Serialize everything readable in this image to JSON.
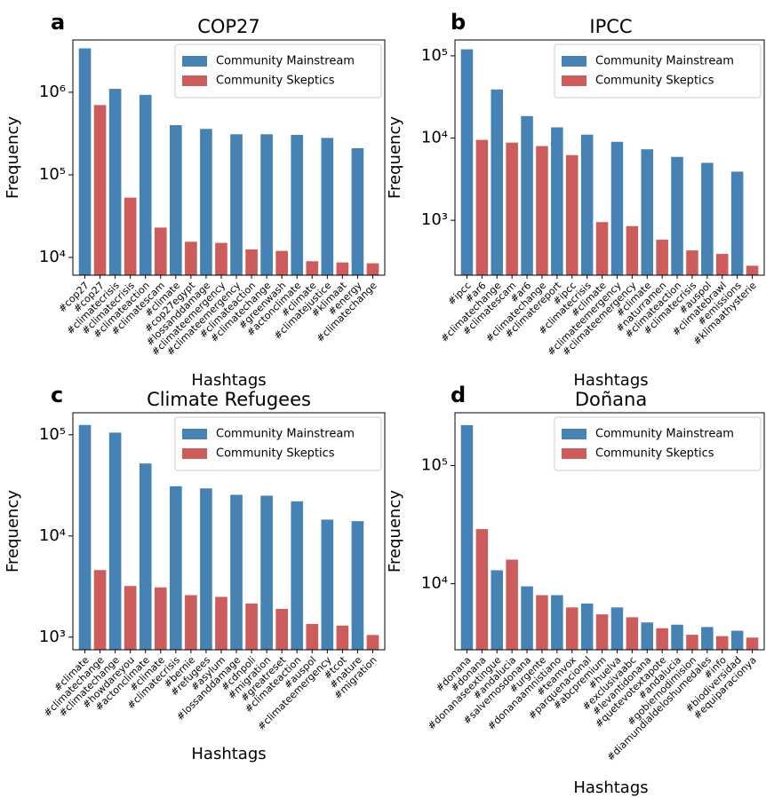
{
  "chart_data": [
    {
      "type": "bar",
      "panel_label": "a",
      "title": "COP27",
      "xlabel": "Hashtags",
      "ylabel": "Frequency",
      "log_scale": true,
      "legend": "upper right",
      "categories": [
        "#cop27",
        "#cop27",
        "#climatecrisis",
        "#climatecrisis",
        "#climateaction",
        "#climatescam",
        "#climate",
        "#cop27egypt",
        "#lossanddamage",
        "#climateemergency",
        "#climateemergency",
        "#climateaction",
        "#climatechange",
        "#greenwash",
        "#actonclimate",
        "#climate",
        "#climatejustice",
        "#klimaat",
        "#energy",
        "#climatechange"
      ],
      "series": [
        {
          "name": "Community Mainstream",
          "color": "#4682b4",
          "values": [
            3400000,
            null,
            1100000,
            null,
            930000,
            null,
            400000,
            null,
            360000,
            null,
            310000,
            null,
            310000,
            null,
            305000,
            null,
            280000,
            null,
            210000,
            null
          ]
        },
        {
          "name": "Community Skeptics",
          "color": "#cd5c5c",
          "values": [
            null,
            700000,
            null,
            53000,
            null,
            23000,
            null,
            15500,
            null,
            15000,
            null,
            12500,
            null,
            12000,
            null,
            9000,
            null,
            8700,
            null,
            8500
          ]
        }
      ],
      "ylim": [
        6100,
        4300000
      ],
      "yticks": [
        {
          "value": 10000,
          "label": "10⁴"
        },
        {
          "value": 100000,
          "label": "10⁵"
        },
        {
          "value": 1000000,
          "label": "10⁶"
        }
      ]
    },
    {
      "type": "bar",
      "panel_label": "b",
      "title": "IPCC",
      "xlabel": "Hashtags",
      "ylabel": "Frequency",
      "log_scale": true,
      "legend": "upper right",
      "categories": [
        "#ipcc",
        "#ar6",
        "#climatechange",
        "#climatescam",
        "#ar6",
        "#climatechange",
        "#climatereport",
        "#ipcc",
        "#climatecrisis",
        "#climate",
        "#climateemergency",
        "#climateemergency",
        "#climate",
        "#naturramen",
        "#climateaction",
        "#climatecrisis",
        "#auspol",
        "#climatebrawl",
        "#emissions",
        "#klimaathysterie"
      ],
      "series": [
        {
          "name": "Community Mainstream",
          "color": "#4682b4",
          "values": [
            120000,
            null,
            39000,
            null,
            18500,
            null,
            13500,
            null,
            11000,
            null,
            9000,
            null,
            7300,
            null,
            5900,
            null,
            5000,
            null,
            3900,
            null
          ]
        },
        {
          "name": "Community Skeptics",
          "color": "#cd5c5c",
          "values": [
            null,
            9500,
            null,
            8800,
            null,
            8000,
            null,
            6200,
            null,
            950,
            null,
            850,
            null,
            580,
            null,
            430,
            null,
            390,
            null,
            280
          ]
        }
      ],
      "ylim": [
        215,
        156000
      ],
      "yticks": [
        {
          "value": 1000,
          "label": "10³"
        },
        {
          "value": 10000,
          "label": "10⁴"
        },
        {
          "value": 100000,
          "label": "10⁵"
        }
      ]
    },
    {
      "type": "bar",
      "panel_label": "c",
      "title": "Climate Refugees",
      "xlabel": "Hashtags",
      "ylabel": "Frequency",
      "log_scale": true,
      "legend": "upper right",
      "categories": [
        "#climate",
        "#climatechange",
        "#climatechange",
        "#howdareyou",
        "#actonclimate",
        "#climate",
        "#climatecrisis",
        "#bernie",
        "#refugees",
        "#asylum",
        "#lossanddamage",
        "#cdnpoli",
        "#migration",
        "#greatreset",
        "#climateaction",
        "#auspol",
        "#climateemergency",
        "#tcot",
        "#nature",
        "#migration"
      ],
      "series": [
        {
          "name": "Community Mainstream",
          "color": "#4682b4",
          "values": [
            125000,
            null,
            105000,
            null,
            52000,
            null,
            31000,
            null,
            29500,
            null,
            25500,
            null,
            25000,
            null,
            22000,
            null,
            14500,
            null,
            14000,
            null
          ]
        },
        {
          "name": "Community Skeptics",
          "color": "#cd5c5c",
          "values": [
            null,
            4600,
            null,
            3200,
            null,
            3100,
            null,
            2600,
            null,
            2500,
            null,
            2150,
            null,
            1900,
            null,
            1350,
            null,
            1300,
            null,
            1050
          ]
        }
      ],
      "ylim": [
        750,
        165000
      ],
      "yticks": [
        {
          "value": 1000,
          "label": "10³"
        },
        {
          "value": 10000,
          "label": "10⁴"
        },
        {
          "value": 100000,
          "label": "10⁵"
        }
      ]
    },
    {
      "type": "bar",
      "panel_label": "d",
      "title": "Doñana",
      "xlabel": "Hashtags",
      "ylabel": "Frequency",
      "log_scale": true,
      "legend": "upper right",
      "categories": [
        "#donana",
        "#donana",
        "#donanaseextingue",
        "#andalucia",
        "#salvemosdonana",
        "#urgente",
        "#donanaamnistiano",
        "#teamvox",
        "#parquenacional",
        "#abcpremium",
        "#huelva",
        "#exclusivaabc",
        "#levantidonana",
        "#quetevotextapote",
        "#andalucia",
        "#gobiernodimision",
        "#diamundialdeloshumedales",
        "#info",
        "#biodiversidad",
        "#equiparacionya"
      ],
      "series": [
        {
          "name": "Community Mainstream",
          "color": "#4682b4",
          "values": [
            220000,
            null,
            13000,
            null,
            9500,
            null,
            8000,
            null,
            6800,
            null,
            6300,
            null,
            4700,
            null,
            4500,
            null,
            4300,
            null,
            4000,
            null
          ]
        },
        {
          "name": "Community Skeptics",
          "color": "#cd5c5c",
          "values": [
            null,
            29000,
            null,
            16000,
            null,
            8000,
            null,
            6300,
            null,
            5500,
            null,
            5200,
            null,
            4200,
            null,
            3700,
            null,
            3600,
            null,
            3500
          ]
        }
      ],
      "ylim": [
        2760,
        280000
      ],
      "yticks": [
        {
          "value": 10000,
          "label": "10⁴"
        },
        {
          "value": 100000,
          "label": "10⁵"
        }
      ]
    }
  ]
}
